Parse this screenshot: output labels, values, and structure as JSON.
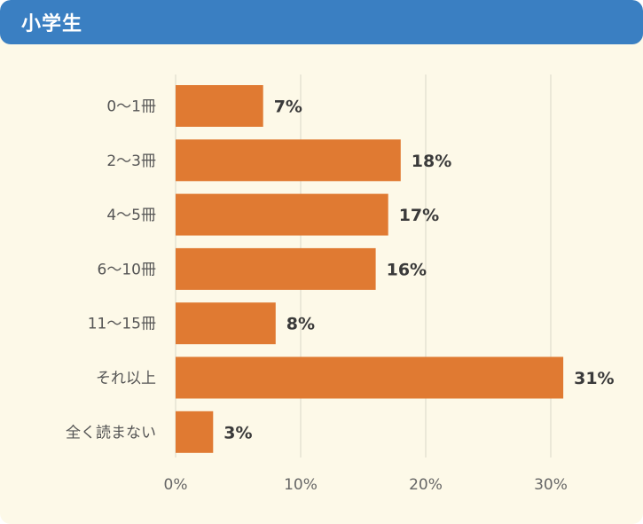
{
  "header": {
    "title": "小学生"
  },
  "colors": {
    "header_bg": "#3a7fc2",
    "card_bg": "#fdf9e8",
    "bar": "#e07a32",
    "grid": "#d9d6c8"
  },
  "chart_data": {
    "type": "bar",
    "orientation": "horizontal",
    "title": "小学生",
    "categories": [
      "0〜1冊",
      "2〜3冊",
      "4〜5冊",
      "6〜10冊",
      "11〜15冊",
      "それ以上",
      "全く読まない"
    ],
    "values": [
      7,
      18,
      17,
      16,
      8,
      31,
      3
    ],
    "value_labels": [
      "7%",
      "18%",
      "17%",
      "16%",
      "8%",
      "31%",
      "3%"
    ],
    "xlim": [
      0,
      35
    ],
    "x_ticks": [
      0,
      10,
      20,
      30
    ],
    "x_tick_labels": [
      "0%",
      "10%",
      "20%",
      "30%"
    ],
    "grid": true,
    "legend": "none"
  }
}
